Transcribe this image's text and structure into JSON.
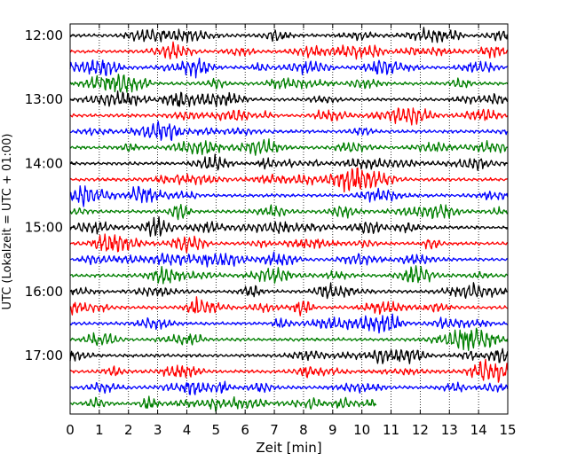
{
  "chart_data": {
    "type": "line",
    "title": "",
    "xlabel": "Zeit  [min]",
    "ylabel": "UTC (Lokalzeit = UTC + 01:00)",
    "xlim": [
      0,
      15
    ],
    "x_ticks": [
      0,
      1,
      2,
      3,
      4,
      5,
      6,
      7,
      8,
      9,
      10,
      11,
      12,
      13,
      14,
      15
    ],
    "x_tick_labels": [
      "0",
      "1",
      "2",
      "3",
      "4",
      "5",
      "6",
      "7",
      "8",
      "9",
      "10",
      "11",
      "12",
      "13",
      "14",
      "15"
    ],
    "y_ticks": [
      "12:00",
      "13:00",
      "14:00",
      "15:00",
      "16:00",
      "17:00"
    ],
    "y_tick_labels": [
      "12:00",
      "13:00",
      "14:00",
      "15:00",
      "16:00",
      "17:00"
    ],
    "grid": {
      "x": true,
      "style": "dotted"
    },
    "line_colors": [
      "#000000",
      "#ff0000",
      "#0000ff",
      "#007f00"
    ],
    "series": [
      {
        "start": "12:00",
        "color": "#000000",
        "end_min": 15
      },
      {
        "start": "12:15",
        "color": "#ff0000",
        "end_min": 15
      },
      {
        "start": "12:30",
        "color": "#0000ff",
        "end_min": 15
      },
      {
        "start": "12:45",
        "color": "#007f00",
        "end_min": 15
      },
      {
        "start": "13:00",
        "color": "#000000",
        "end_min": 15
      },
      {
        "start": "13:15",
        "color": "#ff0000",
        "end_min": 15
      },
      {
        "start": "13:30",
        "color": "#0000ff",
        "end_min": 15
      },
      {
        "start": "13:45",
        "color": "#007f00",
        "end_min": 15
      },
      {
        "start": "14:00",
        "color": "#000000",
        "end_min": 15
      },
      {
        "start": "14:15",
        "color": "#ff0000",
        "end_min": 15
      },
      {
        "start": "14:30",
        "color": "#0000ff",
        "end_min": 15
      },
      {
        "start": "14:45",
        "color": "#007f00",
        "end_min": 15
      },
      {
        "start": "15:00",
        "color": "#000000",
        "end_min": 15
      },
      {
        "start": "15:15",
        "color": "#ff0000",
        "end_min": 15
      },
      {
        "start": "15:30",
        "color": "#0000ff",
        "end_min": 15
      },
      {
        "start": "15:45",
        "color": "#007f00",
        "end_min": 15
      },
      {
        "start": "16:00",
        "color": "#000000",
        "end_min": 15
      },
      {
        "start": "16:15",
        "color": "#ff0000",
        "end_min": 15
      },
      {
        "start": "16:30",
        "color": "#0000ff",
        "end_min": 15
      },
      {
        "start": "16:45",
        "color": "#007f00",
        "end_min": 15
      },
      {
        "start": "17:00",
        "color": "#000000",
        "end_min": 15
      },
      {
        "start": "17:15",
        "color": "#ff0000",
        "end_min": 15
      },
      {
        "start": "17:30",
        "color": "#0000ff",
        "end_min": 15
      },
      {
        "start": "17:45",
        "color": "#007f00",
        "end_min": 10.5
      }
    ]
  }
}
